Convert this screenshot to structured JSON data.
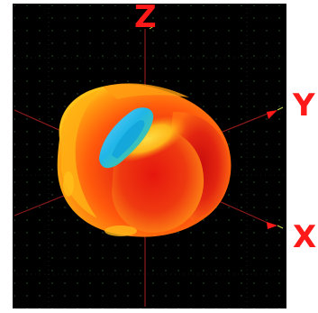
{
  "axes": {
    "z_label": "Z",
    "y_label": "Y",
    "x_label": "X"
  },
  "colors": {
    "background": "#000000",
    "axis_line": "#8b1a1a",
    "axis_label": "#ff1a1a",
    "grid_dot": "#2e5c2e",
    "surface_hot": "#e82a12",
    "surface_warm": "#ff7a0a",
    "surface_yellow": "#ffd21a",
    "surface_cold": "#1fb6e8"
  },
  "icons": {
    "y_axis_arrow": "cone-arrow-icon",
    "x_axis_arrow": "cone-arrow-icon"
  }
}
